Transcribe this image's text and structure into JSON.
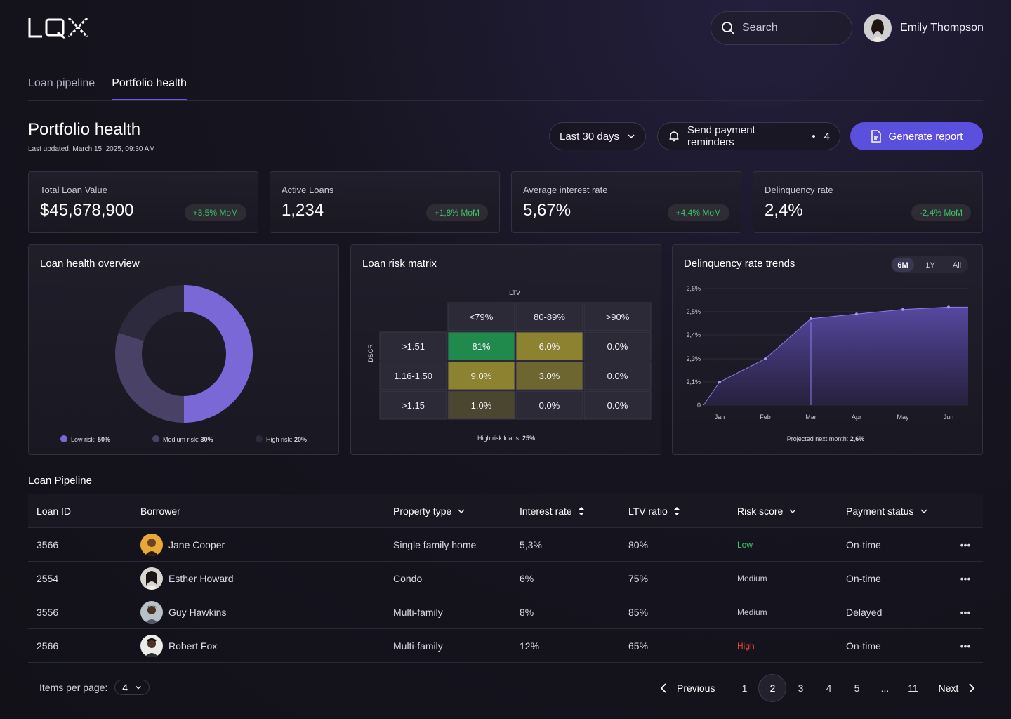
{
  "brand": "LQX",
  "search": {
    "placeholder": "Search"
  },
  "user": {
    "name": "Emily Thompson"
  },
  "tabs": [
    {
      "label": "Loan pipeline",
      "active": false
    },
    {
      "label": "Portfolio health",
      "active": true
    }
  ],
  "header": {
    "title": "Portfolio health",
    "updated": "Last updated, March 15, 2025, 09:30 AM",
    "range": "Last 30 days",
    "reminders_label": "Send payment reminders",
    "reminders_count": "4",
    "generate_label": "Generate report"
  },
  "kpis": [
    {
      "label": "Total Loan Value",
      "value": "$45,678,900",
      "delta": "+3,5% MoM"
    },
    {
      "label": "Active Loans",
      "value": "1,234",
      "delta": "+1,8% MoM"
    },
    {
      "label": "Average interest rate",
      "value": "5,67%",
      "delta": "+4,4% MoM"
    },
    {
      "label": "Delinquency rate",
      "value": "2,4%",
      "delta": "-2,4% MoM"
    }
  ],
  "colors": {
    "accent": "#5b4fdd",
    "low": "#7a68d6",
    "medium": "#4a4166",
    "high": "#2e2a3d",
    "positive": "#3ec26b",
    "negative": "#e0483c"
  },
  "health": {
    "title": "Loan health overview",
    "legend": [
      {
        "name": "Low risk:",
        "value": "50%"
      },
      {
        "name": "Medium risk:",
        "value": "30%"
      },
      {
        "name": "High risk:",
        "value": "20%"
      }
    ]
  },
  "matrix": {
    "title": "Loan risk matrix",
    "col_axis": "LTV",
    "row_axis": "DSCR",
    "cols": [
      "<79%",
      "80-89%",
      ">90%"
    ],
    "rows": [
      {
        "label": ">1.51",
        "cells": [
          "81%",
          "6.0%",
          "0.0%"
        ]
      },
      {
        "label": "1.16-1.50",
        "cells": [
          "9.0%",
          "3.0%",
          "0.0%"
        ]
      },
      {
        "label": ">1.15",
        "cells": [
          "1.0%",
          "0.0%",
          "0.0%"
        ]
      }
    ],
    "footer_label": "High risk loans:",
    "footer_value": "25%"
  },
  "trend": {
    "title": "Delinquency rate trends",
    "ranges": [
      "6M",
      "1Y",
      "All"
    ],
    "active_range": "6M",
    "footer_label": "Projected next month:",
    "footer_value": "2,6%"
  },
  "chart_data": {
    "type": "area",
    "title": "Delinquency rate trends",
    "x": [
      "Jan",
      "Feb",
      "Mar",
      "Apr",
      "May",
      "Jun"
    ],
    "y_ticks": [
      "0",
      "2,1%",
      "2,3%",
      "2,4%",
      "2,5%",
      "2,6%"
    ],
    "series": [
      {
        "values": [
          2.1,
          2.3,
          2.47,
          2.49,
          2.51,
          2.52
        ]
      }
    ]
  },
  "pipeline": {
    "title": "Loan Pipeline",
    "columns": [
      "Loan ID",
      "Borrower",
      "Property type",
      "Interest rate",
      "LTV ratio",
      "Risk score",
      "Payment status"
    ],
    "rows": [
      {
        "id": "3566",
        "borrower": "Jane Cooper",
        "property": "Single family  home",
        "rate": "5,3%",
        "ltv": "80%",
        "risk": "Low",
        "status": "On-time"
      },
      {
        "id": "2554",
        "borrower": "Esther Howard",
        "property": "Condo",
        "rate": "6%",
        "ltv": "75%",
        "risk": "Medium",
        "status": "On-time"
      },
      {
        "id": "3556",
        "borrower": "Guy Hawkins",
        "property": "Multi-family",
        "rate": "8%",
        "ltv": "85%",
        "risk": "Medium",
        "status": "Delayed"
      },
      {
        "id": "2566",
        "borrower": "Robert Fox",
        "property": "Multi-family",
        "rate": "12%",
        "ltv": "65%",
        "risk": "High",
        "status": "On-time"
      }
    ]
  },
  "pagination": {
    "items_label": "Items per page:",
    "items_value": "4",
    "previous": "Previous",
    "next": "Next",
    "pages": [
      "1",
      "2",
      "3",
      "4",
      "5",
      "...",
      "11"
    ],
    "current": "2"
  }
}
